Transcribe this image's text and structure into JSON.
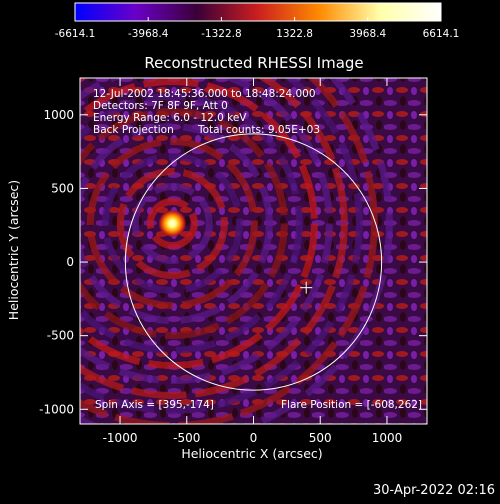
{
  "chart_data": {
    "type": "heatmap",
    "title": "Reconstructed RHESSI Image",
    "xlabel": "Heliocentric X (arcsec)",
    "ylabel": "Heliocentric Y (arcsec)",
    "xlim": [
      -1300,
      1300
    ],
    "ylim": [
      -1100,
      1250
    ],
    "xticks": [
      -1000,
      -500,
      0,
      500,
      1000
    ],
    "yticks": [
      -1000,
      -500,
      0,
      500,
      1000
    ],
    "colorbar": {
      "min": -6614.1,
      "max": 6614.1,
      "tick_labels": [
        "-6614.1",
        "-3968.4",
        "-1322.8",
        "1322.8",
        "3968.4",
        "6614.1"
      ],
      "colors": [
        "#0000ff",
        "#6a00c8",
        "#3a0038",
        "#cc1f1f",
        "#ff8a00",
        "#ffffaa",
        "#ffffff"
      ]
    },
    "source_peak": {
      "x": -608,
      "y": 262
    },
    "disk": {
      "center": [
        0,
        0
      ],
      "radius": 960,
      "color": "#ffffff"
    },
    "cross_marker": {
      "x": 395,
      "y": -174
    },
    "annotations": [
      "12-Jul-2002 18:45:36.000 to 18:48:24.000",
      "Detectors: 7F 8F 9F, Att 0",
      "Energy Range: 6.0 - 12.0 keV",
      "Back Projection",
      "Total counts: 9.05E+03"
    ],
    "footer_left": "Spin Axis = [395,-174]",
    "footer_right": "Flare Position = [-608,262]",
    "timestamp": "30-Apr-2022 02:16"
  }
}
